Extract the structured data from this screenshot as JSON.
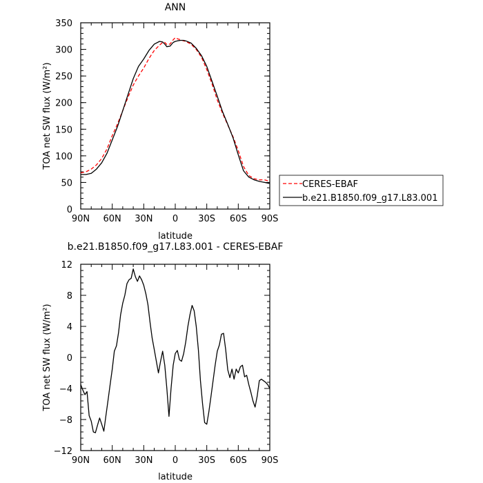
{
  "chart_data": [
    {
      "type": "line",
      "title": "ANN",
      "xlabel": "latitude",
      "ylabel": "TOA net SW flux (W/m²)",
      "xlim": [
        90,
        -90
      ],
      "ylim": [
        0,
        350
      ],
      "x_ticks": [
        90,
        60,
        30,
        0,
        -30,
        -60,
        -90
      ],
      "x_tick_labels": [
        "90N",
        "60N",
        "30N",
        "0",
        "30S",
        "60S",
        "90S"
      ],
      "y_ticks": [
        0,
        50,
        100,
        150,
        200,
        250,
        300,
        350
      ],
      "y_tick_labels": [
        "0",
        "50",
        "100",
        "150",
        "200",
        "250",
        "300",
        "350"
      ],
      "legend_position": "right",
      "series": [
        {
          "name": "CERES-EBAF",
          "color": "#ff0000",
          "dash": "dashed",
          "x": [
            90,
            85,
            80,
            75,
            70,
            65,
            60,
            55,
            50,
            45,
            40,
            35,
            30,
            25,
            20,
            15,
            12,
            10,
            8,
            5,
            2,
            0,
            -2,
            -5,
            -8,
            -10,
            -15,
            -20,
            -25,
            -30,
            -35,
            -40,
            -45,
            -50,
            -55,
            -60,
            -65,
            -70,
            -75,
            -80,
            -85,
            -90
          ],
          "y": [
            68,
            70,
            75,
            83,
            95,
            113,
            138,
            160,
            185,
            210,
            233,
            250,
            265,
            283,
            298,
            308,
            313,
            313,
            309,
            310,
            318,
            322,
            320,
            318,
            316,
            315,
            310,
            300,
            285,
            262,
            235,
            205,
            180,
            158,
            136,
            110,
            80,
            63,
            57,
            55,
            55,
            52
          ]
        },
        {
          "name": "b.e21.B1850.f09_g17.L83.001",
          "color": "#000000",
          "dash": "solid",
          "x": [
            90,
            85,
            80,
            75,
            70,
            65,
            60,
            55,
            50,
            45,
            40,
            35,
            30,
            25,
            20,
            15,
            12,
            10,
            8,
            5,
            2,
            0,
            -2,
            -5,
            -8,
            -10,
            -15,
            -20,
            -25,
            -30,
            -35,
            -40,
            -45,
            -50,
            -55,
            -60,
            -65,
            -70,
            -75,
            -80,
            -85,
            -90
          ],
          "y": [
            65,
            65,
            67,
            75,
            87,
            105,
            130,
            155,
            185,
            215,
            245,
            268,
            282,
            298,
            310,
            315,
            314,
            310,
            305,
            306,
            313,
            315,
            316,
            317,
            317,
            316,
            312,
            302,
            288,
            268,
            240,
            212,
            183,
            159,
            134,
            102,
            72,
            60,
            55,
            52,
            50,
            48
          ]
        }
      ]
    },
    {
      "type": "line",
      "title": "b.e21.B1850.f09_g17.L83.001 - CERES-EBAF",
      "xlabel": "latitude",
      "ylabel": "TOA net SW flux (W/m²)",
      "xlim": [
        90,
        -90
      ],
      "ylim": [
        -12,
        12
      ],
      "x_ticks": [
        90,
        60,
        30,
        0,
        -30,
        -60,
        -90
      ],
      "x_tick_labels": [
        "90N",
        "60N",
        "30N",
        "0",
        "30S",
        "60S",
        "90S"
      ],
      "y_ticks": [
        -12,
        -8,
        -4,
        0,
        4,
        8,
        12
      ],
      "y_tick_labels": [
        "−12",
        "−8",
        "−4",
        "0",
        "4",
        "8",
        "12"
      ],
      "series": [
        {
          "color": "#000000",
          "dash": "solid",
          "x": [
            90,
            88,
            86,
            84,
            82,
            80,
            78,
            76,
            74,
            72,
            70,
            68,
            66,
            64,
            62,
            60,
            58,
            56,
            54,
            52,
            50,
            48,
            46,
            44,
            42,
            40,
            38,
            36,
            34,
            32,
            30,
            28,
            26,
            24,
            22,
            20,
            18,
            16,
            14,
            12,
            10,
            8,
            6,
            4,
            2,
            0,
            -2,
            -4,
            -6,
            -8,
            -10,
            -12,
            -14,
            -16,
            -18,
            -20,
            -22,
            -24,
            -26,
            -28,
            -30,
            -32,
            -34,
            -36,
            -38,
            -40,
            -42,
            -44,
            -46,
            -48,
            -50,
            -52,
            -54,
            -56,
            -58,
            -60,
            -62,
            -64,
            -66,
            -68,
            -70,
            -72,
            -74,
            -76,
            -78,
            -80,
            -82,
            -84,
            -86,
            -88,
            -90
          ],
          "y": [
            -3.5,
            -4.2,
            -4.8,
            -4.4,
            -7.5,
            -8.2,
            -9.6,
            -9.7,
            -8.7,
            -7.8,
            -8.6,
            -9.5,
            -7.5,
            -5.5,
            -3.5,
            -1.5,
            0.8,
            1.5,
            3.2,
            5.5,
            7.0,
            8.0,
            9.5,
            10.0,
            10.2,
            11.4,
            10.4,
            9.8,
            10.5,
            10.0,
            9.3,
            8.2,
            6.8,
            4.5,
            2.5,
            1.0,
            -0.5,
            -2.0,
            -0.5,
            0.8,
            -1.0,
            -4.0,
            -7.6,
            -4.0,
            -1.0,
            0.5,
            0.9,
            -0.3,
            -0.5,
            0.5,
            2.0,
            4.0,
            5.5,
            6.7,
            6.0,
            4.0,
            1.0,
            -3.0,
            -6.0,
            -8.4,
            -8.6,
            -7.0,
            -5.0,
            -3.0,
            -1.0,
            0.8,
            1.6,
            3.0,
            3.1,
            1.0,
            -1.6,
            -2.6,
            -1.5,
            -2.8,
            -1.5,
            -2.0,
            -1.2,
            -1.0,
            -2.5,
            -2.3,
            -3.5,
            -4.5,
            -5.6,
            -6.4,
            -5.0,
            -3.0,
            -2.8,
            -3.0,
            -3.2,
            -3.5,
            -4.0
          ]
        }
      ]
    }
  ]
}
